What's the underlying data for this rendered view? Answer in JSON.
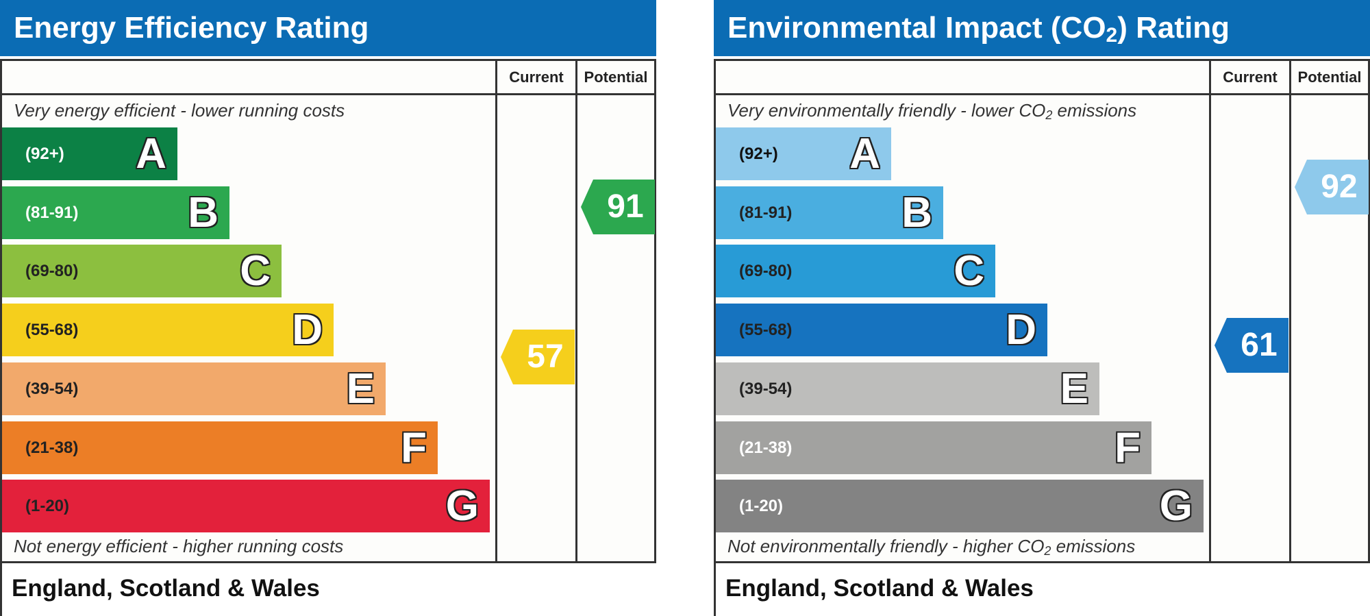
{
  "chart_data": [
    {
      "type": "bar",
      "title": "Energy Efficiency Rating",
      "columns": [
        "Current",
        "Potential"
      ],
      "caption_top": "Very energy efficient - lower running costs",
      "caption_bottom": "Not energy efficient - higher running costs",
      "region": "England, Scotland & Wales",
      "bands": [
        {
          "range": "(92+)",
          "letter": "A",
          "color": "#0c8145",
          "text_color": "#ffffff"
        },
        {
          "range": "(81-91)",
          "letter": "B",
          "color": "#2ca84f",
          "text_color": "#ffffff"
        },
        {
          "range": "(69-80)",
          "letter": "C",
          "color": "#8cbf3f",
          "text_color": "#222222"
        },
        {
          "range": "(55-68)",
          "letter": "D",
          "color": "#f5cf1c",
          "text_color": "#222222"
        },
        {
          "range": "(39-54)",
          "letter": "E",
          "color": "#f2a96b",
          "text_color": "#222222"
        },
        {
          "range": "(21-38)",
          "letter": "F",
          "color": "#ec7e26",
          "text_color": "#222222"
        },
        {
          "range": "(1-20)",
          "letter": "G",
          "color": "#e3213b",
          "text_color": "#222222"
        }
      ],
      "current": {
        "value": 57,
        "color": "#f5cf1c"
      },
      "potential": {
        "value": 91,
        "color": "#2ca84f"
      }
    },
    {
      "type": "bar",
      "title": "Environmental Impact (CO₂) Rating",
      "columns": [
        "Current",
        "Potential"
      ],
      "caption_top": "Very environmentally friendly - lower CO₂ emissions",
      "caption_bottom": "Not environmentally friendly - higher CO₂ emissions",
      "region": "England, Scotland & Wales",
      "bands": [
        {
          "range": "(92+)",
          "letter": "A",
          "color": "#8ec9eb",
          "text_color": "#111111"
        },
        {
          "range": "(81-91)",
          "letter": "B",
          "color": "#4aaee0",
          "text_color": "#222222"
        },
        {
          "range": "(69-80)",
          "letter": "C",
          "color": "#289bd6",
          "text_color": "#222222"
        },
        {
          "range": "(55-68)",
          "letter": "D",
          "color": "#1673bf",
          "text_color": "#222222"
        },
        {
          "range": "(39-54)",
          "letter": "E",
          "color": "#bdbdbb",
          "text_color": "#222222"
        },
        {
          "range": "(21-38)",
          "letter": "F",
          "color": "#a2a2a0",
          "text_color": "#ffffff"
        },
        {
          "range": "(1-20)",
          "letter": "G",
          "color": "#838383",
          "text_color": "#ffffff"
        }
      ],
      "current": {
        "value": 61,
        "color": "#1673bf"
      },
      "potential": {
        "value": 92,
        "color": "#8ec9eb"
      }
    }
  ]
}
